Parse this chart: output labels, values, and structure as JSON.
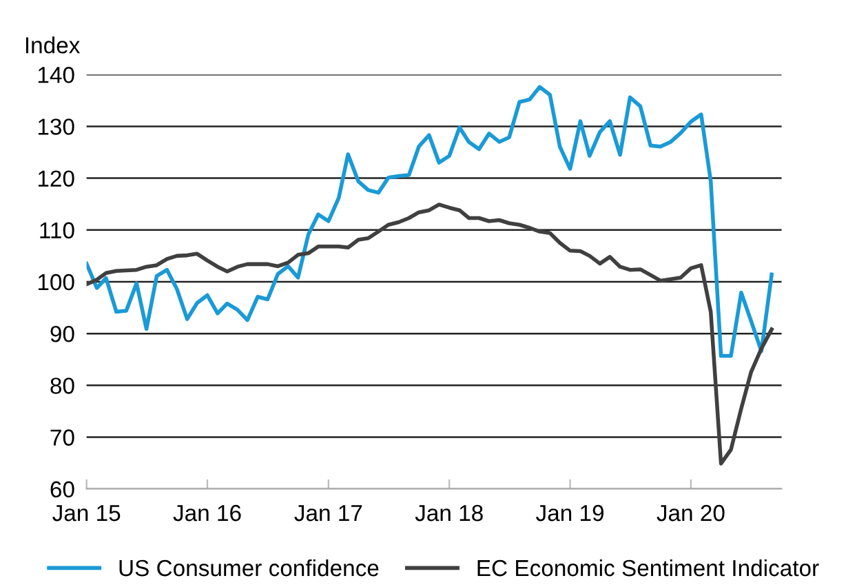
{
  "chart_data": {
    "type": "line",
    "ylabel": "Index",
    "x": [
      "2015-01",
      "2015-02",
      "2015-03",
      "2015-04",
      "2015-05",
      "2015-06",
      "2015-07",
      "2015-08",
      "2015-09",
      "2015-10",
      "2015-11",
      "2015-12",
      "2016-01",
      "2016-02",
      "2016-03",
      "2016-04",
      "2016-05",
      "2016-06",
      "2016-07",
      "2016-08",
      "2016-09",
      "2016-10",
      "2016-11",
      "2016-12",
      "2017-01",
      "2017-02",
      "2017-03",
      "2017-04",
      "2017-05",
      "2017-06",
      "2017-07",
      "2017-08",
      "2017-09",
      "2017-10",
      "2017-11",
      "2017-12",
      "2018-01",
      "2018-02",
      "2018-03",
      "2018-04",
      "2018-05",
      "2018-06",
      "2018-07",
      "2018-08",
      "2018-09",
      "2018-10",
      "2018-11",
      "2018-12",
      "2019-01",
      "2019-02",
      "2019-03",
      "2019-04",
      "2019-05",
      "2019-06",
      "2019-07",
      "2019-08",
      "2019-09",
      "2019-10",
      "2019-11",
      "2019-12",
      "2020-01",
      "2020-02",
      "2020-03",
      "2020-04",
      "2020-05",
      "2020-06",
      "2020-07",
      "2020-08",
      "2020-09"
    ],
    "series": [
      {
        "name": "US Consumer confidence",
        "color": "#1a9ad6",
        "values": [
          103.5,
          98.8,
          100.7,
          94.2,
          94.4,
          99.7,
          90.9,
          101.1,
          102.3,
          98.6,
          92.8,
          95.9,
          97.4,
          93.9,
          95.8,
          94.6,
          92.6,
          97.1,
          96.6,
          101.5,
          103.0,
          100.8,
          109.1,
          113.0,
          111.7,
          116.2,
          124.6,
          119.4,
          117.7,
          117.2,
          120.1,
          120.4,
          120.6,
          126.1,
          128.3,
          123.0,
          124.3,
          129.8,
          127.0,
          125.6,
          128.6,
          127.0,
          127.9,
          134.7,
          135.2,
          137.6,
          136.1,
          126.1,
          121.8,
          131.0,
          124.3,
          128.9,
          131.0,
          124.5,
          135.6,
          133.9,
          126.3,
          126.1,
          127.0,
          128.7,
          130.9,
          132.3,
          119.4,
          85.7,
          85.7,
          97.9,
          92.4,
          86.6,
          101.4
        ]
      },
      {
        "name": "EC Economic Sentiment Indicator",
        "color": "#404040",
        "values": [
          99.5,
          100.4,
          101.7,
          102.1,
          102.2,
          102.3,
          102.9,
          103.2,
          104.4,
          105.0,
          105.1,
          105.4,
          104.1,
          102.9,
          102.0,
          102.9,
          103.4,
          103.4,
          103.4,
          103.0,
          103.7,
          105.2,
          105.5,
          106.8,
          106.8,
          106.8,
          106.6,
          108.1,
          108.4,
          109.7,
          111.0,
          111.5,
          112.3,
          113.4,
          113.8,
          114.9,
          114.3,
          113.8,
          112.3,
          112.3,
          111.7,
          111.9,
          111.3,
          111.0,
          110.4,
          109.7,
          109.4,
          107.5,
          106.0,
          105.9,
          105.0,
          103.5,
          104.8,
          102.9,
          102.3,
          102.4,
          101.3,
          100.2,
          100.5,
          100.8,
          102.6,
          103.2,
          94.2,
          64.9,
          67.6,
          75.5,
          82.6,
          87.1,
          90.8
        ]
      }
    ],
    "xlim": [
      "2015-01",
      "2020-10"
    ],
    "xticks": [
      {
        "value": "2015-01",
        "label": "Jan 15"
      },
      {
        "value": "2016-01",
        "label": "Jan 16"
      },
      {
        "value": "2017-01",
        "label": "Jan 17"
      },
      {
        "value": "2018-01",
        "label": "Jan 18"
      },
      {
        "value": "2019-01",
        "label": "Jan 19"
      },
      {
        "value": "2020-01",
        "label": "Jan 20"
      }
    ],
    "ylim": [
      60,
      140
    ],
    "yticks": [
      60,
      70,
      80,
      90,
      100,
      110,
      120,
      130,
      140
    ],
    "grid": "y",
    "legend": "bottom",
    "marker": "none",
    "line_style": "solid"
  }
}
